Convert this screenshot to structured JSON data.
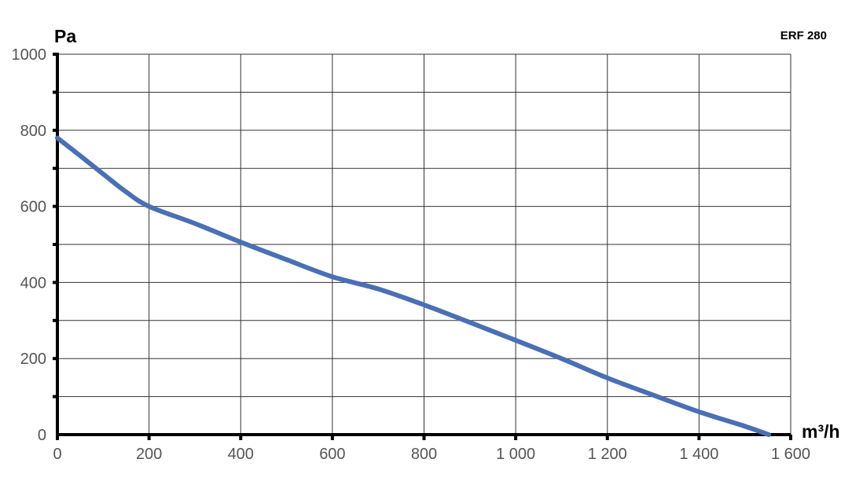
{
  "chart_data": {
    "type": "line",
    "title": "ERF 280",
    "xlabel": "m³/h",
    "ylabel": "Pa",
    "xlim": [
      0,
      1600
    ],
    "ylim": [
      0,
      1000
    ],
    "x_ticks": [
      "0",
      "200",
      "400",
      "600",
      "800",
      "1 000",
      "1 200",
      "1 400",
      "1 600"
    ],
    "x_tick_values": [
      0,
      200,
      400,
      600,
      800,
      1000,
      1200,
      1400,
      1600
    ],
    "y_ticks": [
      "0",
      "200",
      "400",
      "600",
      "800",
      "1000"
    ],
    "y_tick_values": [
      0,
      200,
      400,
      600,
      800,
      1000
    ],
    "grid": true,
    "series": [
      {
        "color": "#4a6fb5",
        "x": [
          0,
          50,
          100,
          150,
          200,
          300,
          400,
          500,
          600,
          700,
          800,
          900,
          1000,
          1100,
          1200,
          1300,
          1400,
          1500,
          1552
        ],
        "y": [
          780,
          733,
          685,
          638,
          600,
          555,
          506,
          460,
          415,
          383,
          341,
          295,
          248,
          200,
          149,
          104,
          60,
          22,
          0
        ]
      }
    ]
  }
}
